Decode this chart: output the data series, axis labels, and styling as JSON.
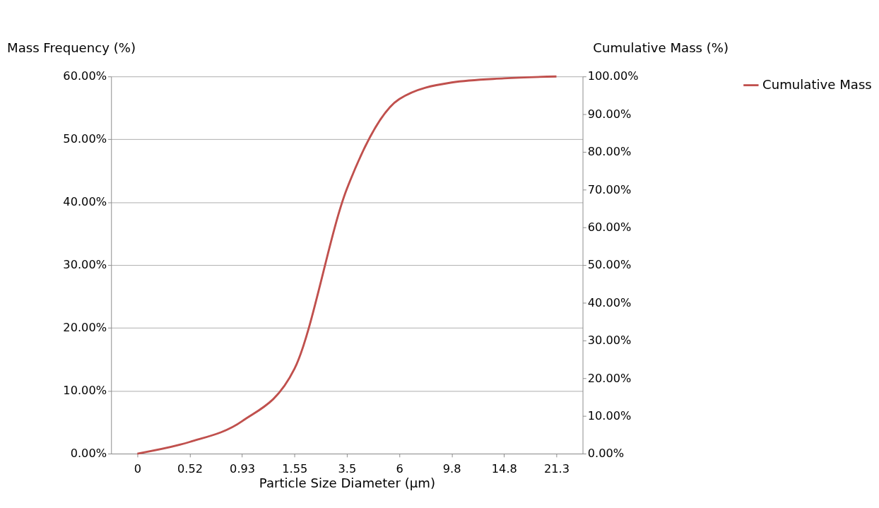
{
  "chart_data": {
    "type": "line",
    "xlabel": "Particle Size Diameter (µm)",
    "ylabel": "Mass Frequency (%)",
    "y2label": "Cumulative Mass (%)",
    "categories": [
      "0",
      "0.52",
      "0.93",
      "1.55",
      "3.5",
      "6",
      "9.8",
      "14.8",
      "21.3"
    ],
    "series": [
      {
        "name": "Cumulative Mass",
        "color": "#c0504d",
        "axis": "y2",
        "values": [
          0,
          3.1,
          8.6,
          22.5,
          70.2,
          94,
          98.4,
          99.5,
          100
        ]
      }
    ],
    "ylim": [
      0,
      60
    ],
    "yticks": [
      {
        "value": 0,
        "label": "0.00%"
      },
      {
        "value": 10,
        "label": "10.00%"
      },
      {
        "value": 20,
        "label": "20.00%"
      },
      {
        "value": 30,
        "label": "30.00%"
      },
      {
        "value": 40,
        "label": "40.00%"
      },
      {
        "value": 50,
        "label": "50.00%"
      },
      {
        "value": 60,
        "label": "60.00%"
      }
    ],
    "y2lim": [
      0,
      100
    ],
    "y2ticks": [
      {
        "value": 0,
        "label": "0.00%"
      },
      {
        "value": 10,
        "label": "10.00%"
      },
      {
        "value": 20,
        "label": "20.00%"
      },
      {
        "value": 30,
        "label": "30.00%"
      },
      {
        "value": 40,
        "label": "40.00%"
      },
      {
        "value": 50,
        "label": "50.00%"
      },
      {
        "value": 60,
        "label": "60.00%"
      },
      {
        "value": 70,
        "label": "70.00%"
      },
      {
        "value": 80,
        "label": "80.00%"
      },
      {
        "value": 90,
        "label": "90.00%"
      },
      {
        "value": 100,
        "label": "100.00%"
      }
    ],
    "grid": "y",
    "legend": "right",
    "line_style": "solid",
    "marker": "none"
  }
}
